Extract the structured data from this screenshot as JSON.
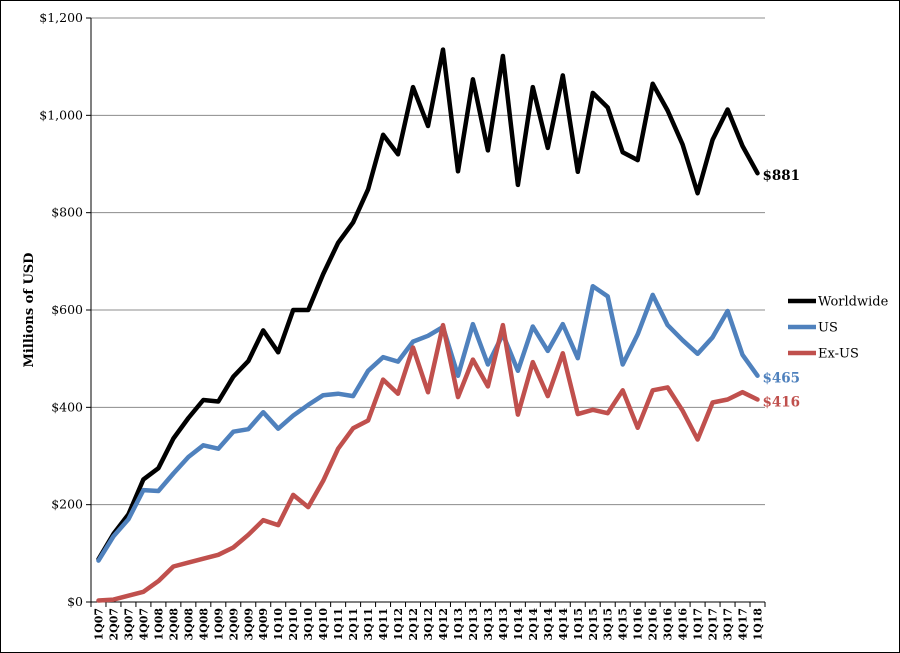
{
  "chart_data": {
    "type": "line",
    "title": "",
    "xlabel": "",
    "ylabel": "Millions of USD",
    "ylim": [
      0,
      1200
    ],
    "yticks": [
      0,
      200,
      400,
      600,
      800,
      1000,
      1200
    ],
    "ytick_labels": [
      "$0",
      "$200",
      "$400",
      "$600",
      "$800",
      "$1,000",
      "$1,200"
    ],
    "grid": "horizontal",
    "legend_position": "right",
    "categories": [
      "1Q07",
      "2Q07",
      "3Q07",
      "4Q07",
      "1Q08",
      "2Q08",
      "3Q08",
      "4Q08",
      "1Q09",
      "2Q09",
      "3Q09",
      "4Q09",
      "1Q10",
      "2Q10",
      "3Q10",
      "4Q10",
      "1Q11",
      "2Q11",
      "3Q11",
      "4Q11",
      "1Q12",
      "2Q12",
      "3Q12",
      "4Q12",
      "1Q13",
      "2Q13",
      "3Q13",
      "4Q13",
      "1Q14",
      "2Q14",
      "3Q14",
      "4Q14",
      "1Q15",
      "2Q15",
      "3Q15",
      "4Q15",
      "1Q16",
      "2Q16",
      "3Q16",
      "4Q16",
      "1Q17",
      "2Q17",
      "3Q17",
      "4Q17",
      "1Q18"
    ],
    "series": [
      {
        "name": "Worldwide",
        "color": "#000000",
        "end_label": "$881",
        "values": [
          88,
          140,
          180,
          252,
          275,
          336,
          378,
          415,
          412,
          463,
          495,
          558,
          513,
          600,
          600,
          674,
          738,
          780,
          848,
          960,
          920,
          1058,
          978,
          1135,
          885,
          1074,
          928,
          1122,
          857,
          1058,
          933,
          1082,
          884,
          1046,
          1016,
          924,
          908,
          1065,
          1010,
          940,
          840,
          950,
          1012,
          937,
          881
        ]
      },
      {
        "name": "US",
        "color": "#4F81BD",
        "end_label": "$465",
        "values": [
          85,
          135,
          170,
          230,
          228,
          264,
          298,
          322,
          315,
          350,
          355,
          390,
          356,
          383,
          405,
          425,
          428,
          423,
          475,
          503,
          494,
          535,
          547,
          565,
          465,
          571,
          488,
          550,
          475,
          566,
          516,
          571,
          501,
          649,
          628,
          488,
          550,
          631,
          569,
          538,
          510,
          544,
          598,
          508,
          465
        ]
      },
      {
        "name": "Ex-US",
        "color": "#C0504D",
        "end_label": "$416",
        "values": [
          3,
          5,
          13,
          21,
          43,
          73,
          81,
          89,
          97,
          112,
          138,
          168,
          158,
          220,
          195,
          249,
          315,
          357,
          373,
          457,
          428,
          523,
          431,
          569,
          421,
          498,
          443,
          569,
          385,
          493,
          423,
          511,
          386,
          395,
          388,
          435,
          358,
          435,
          441,
          393,
          334,
          410,
          416,
          431,
          416
        ]
      }
    ]
  }
}
